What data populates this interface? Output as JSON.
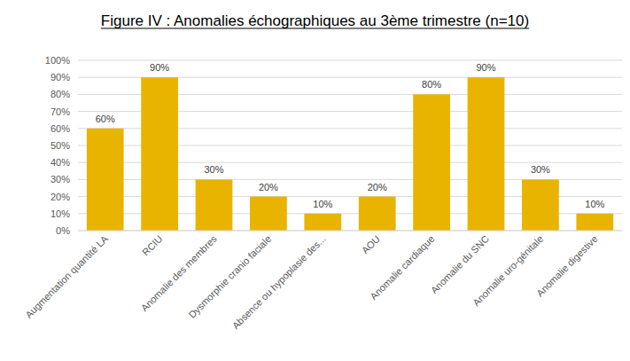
{
  "chart_data": {
    "type": "bar",
    "title": "Figure IV : Anomalies échographiques au 3ème trimestre (n=10)",
    "categories": [
      "Augmentation quantité LA",
      "RCIU",
      "Anomalie des membres",
      "Dysmorphie cranio faciale",
      "Absence ou hypoplasie des...",
      "AOU",
      "Anomalie cardiaque",
      "Anomalie du SNC",
      "Anomalie uro-génitale",
      "Anomalie digestive"
    ],
    "values": [
      60,
      90,
      30,
      20,
      10,
      20,
      80,
      90,
      30,
      10
    ],
    "value_labels": [
      "60%",
      "90%",
      "30%",
      "20%",
      "10%",
      "20%",
      "80%",
      "90%",
      "30%",
      "10%"
    ],
    "color": "#e8b400",
    "ylim": [
      0,
      100
    ],
    "yticks": [
      {
        "value": 0,
        "label": "0%"
      },
      {
        "value": 10,
        "label": "10%"
      },
      {
        "value": 20,
        "label": "20%"
      },
      {
        "value": 30,
        "label": "30%"
      },
      {
        "value": 40,
        "label": "40%"
      },
      {
        "value": 50,
        "label": "50%"
      },
      {
        "value": 60,
        "label": "60%"
      },
      {
        "value": 70,
        "label": "70%"
      },
      {
        "value": 80,
        "label": "80%"
      },
      {
        "value": 90,
        "label": "90%"
      },
      {
        "value": 100,
        "label": "100%"
      }
    ],
    "grid": true,
    "data_labels": true
  }
}
